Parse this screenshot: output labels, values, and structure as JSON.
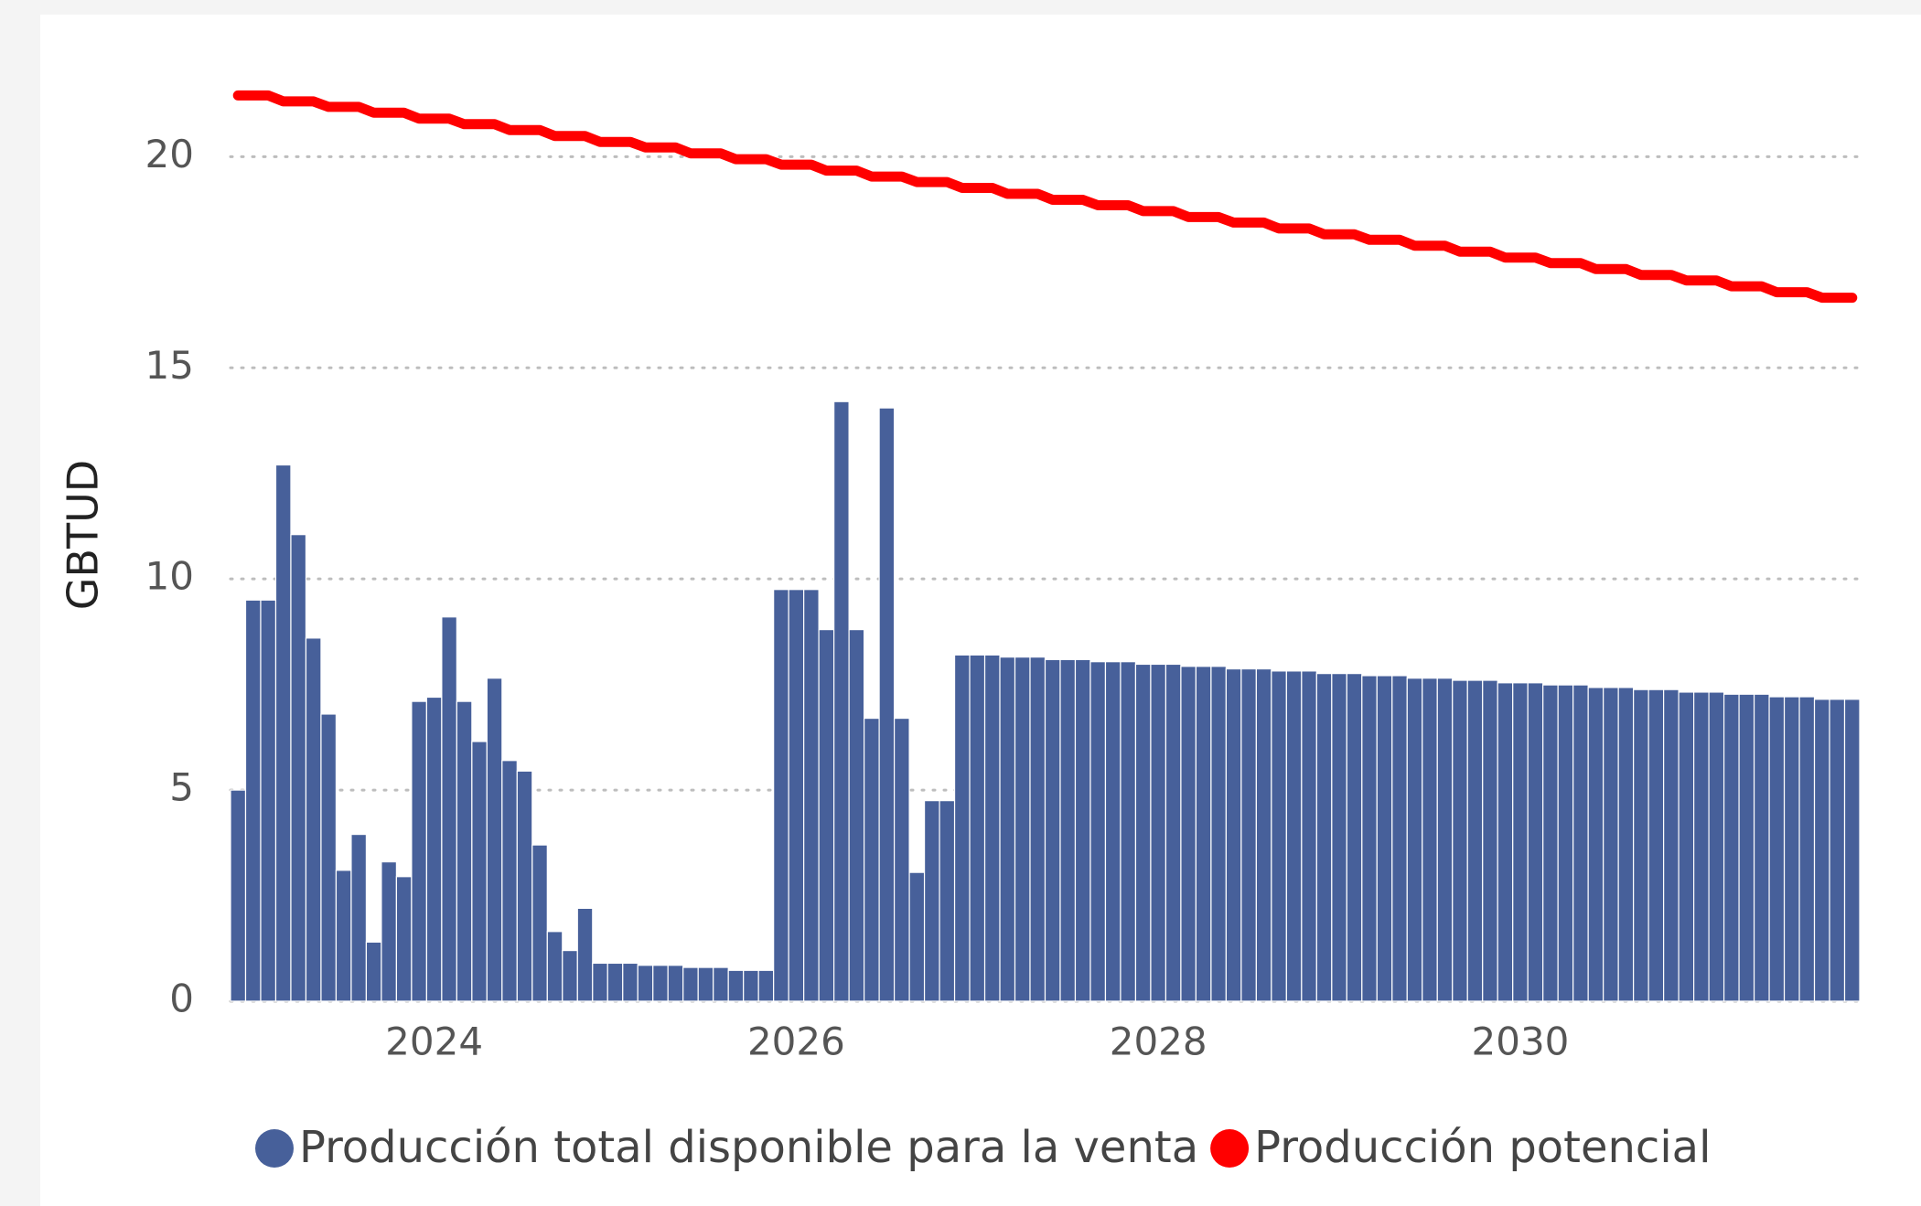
{
  "chart_data": {
    "type": "bar",
    "y_label": "GBTUD",
    "categories": [
      null,
      null,
      null,
      null,
      null,
      null,
      null,
      null,
      null,
      null,
      null,
      null,
      null,
      "2024",
      null,
      null,
      null,
      null,
      null,
      null,
      null,
      null,
      null,
      null,
      null,
      null,
      null,
      null,
      null,
      null,
      null,
      null,
      null,
      null,
      null,
      null,
      null,
      "2026",
      null,
      null,
      null,
      null,
      null,
      null,
      null,
      null,
      null,
      null,
      null,
      null,
      null,
      null,
      null,
      null,
      null,
      null,
      null,
      null,
      null,
      null,
      null,
      "2028",
      null,
      null,
      null,
      null,
      null,
      null,
      null,
      null,
      null,
      null,
      null,
      null,
      null,
      null,
      null,
      null,
      null,
      null,
      null,
      null,
      null,
      null,
      null,
      "2030",
      null,
      null,
      null,
      null,
      null,
      null,
      null,
      null,
      null,
      null,
      null,
      null,
      null,
      null,
      null,
      null,
      null,
      null,
      null,
      null,
      null,
      null
    ],
    "series": [
      {
        "name": "Producción total disponible para la venta",
        "color": "#47609a",
        "kind": "bar",
        "values": [
          5.0,
          9.5,
          9.5,
          12.7,
          11.05,
          8.6,
          6.8,
          3.1,
          3.95,
          1.4,
          3.3,
          2.95,
          7.1,
          7.2,
          9.1,
          7.1,
          6.15,
          7.65,
          5.7,
          5.45,
          3.7,
          1.65,
          1.2,
          2.2,
          0.9,
          0.9,
          0.9,
          0.85,
          0.85,
          0.85,
          0.8,
          0.8,
          0.8,
          0.73,
          0.73,
          0.73,
          9.75,
          9.75,
          9.75,
          8.8,
          14.2,
          8.8,
          6.7,
          14.05,
          6.7,
          3.05,
          4.75,
          4.75,
          8.2,
          8.2,
          8.2,
          8.15,
          8.15,
          8.15,
          8.09,
          8.09,
          8.09,
          8.04,
          8.04,
          8.04,
          7.98,
          7.98,
          7.98,
          7.93,
          7.93,
          7.93,
          7.87,
          7.87,
          7.87,
          7.82,
          7.82,
          7.82,
          7.76,
          7.76,
          7.76,
          7.71,
          7.71,
          7.71,
          7.65,
          7.65,
          7.65,
          7.6,
          7.6,
          7.6,
          7.54,
          7.54,
          7.54,
          7.49,
          7.49,
          7.49,
          7.43,
          7.43,
          7.43,
          7.38,
          7.38,
          7.38,
          7.32,
          7.32,
          7.32,
          7.27,
          7.27,
          7.27,
          7.21,
          7.21,
          7.21,
          7.15,
          7.15,
          7.15
        ]
      },
      {
        "name": "Producción potencial",
        "color": "#ff0000",
        "kind": "line",
        "values": [
          21.45,
          21.45,
          21.45,
          21.31,
          21.31,
          21.31,
          21.18,
          21.18,
          21.18,
          21.04,
          21.04,
          21.04,
          20.9,
          20.9,
          20.9,
          20.77,
          20.77,
          20.77,
          20.63,
          20.63,
          20.63,
          20.49,
          20.49,
          20.49,
          20.35,
          20.35,
          20.35,
          20.22,
          20.22,
          20.22,
          20.08,
          20.08,
          20.08,
          19.94,
          19.94,
          19.94,
          19.81,
          19.81,
          19.81,
          19.67,
          19.67,
          19.67,
          19.53,
          19.53,
          19.53,
          19.4,
          19.4,
          19.4,
          19.26,
          19.26,
          19.26,
          19.12,
          19.12,
          19.12,
          18.98,
          18.98,
          18.98,
          18.85,
          18.85,
          18.85,
          18.71,
          18.71,
          18.71,
          18.57,
          18.57,
          18.57,
          18.44,
          18.44,
          18.44,
          18.3,
          18.3,
          18.3,
          18.16,
          18.16,
          18.16,
          18.03,
          18.03,
          18.03,
          17.89,
          17.89,
          17.89,
          17.75,
          17.75,
          17.75,
          17.61,
          17.61,
          17.61,
          17.48,
          17.48,
          17.48,
          17.34,
          17.34,
          17.34,
          17.2,
          17.2,
          17.2,
          17.07,
          17.07,
          17.07,
          16.93,
          16.93,
          16.93,
          16.79,
          16.79,
          16.79,
          16.66,
          16.66,
          16.66
        ]
      }
    ],
    "ylim": [
      0,
      22
    ],
    "yticks": [
      0,
      5,
      10,
      15,
      20
    ],
    "grid": true
  }
}
